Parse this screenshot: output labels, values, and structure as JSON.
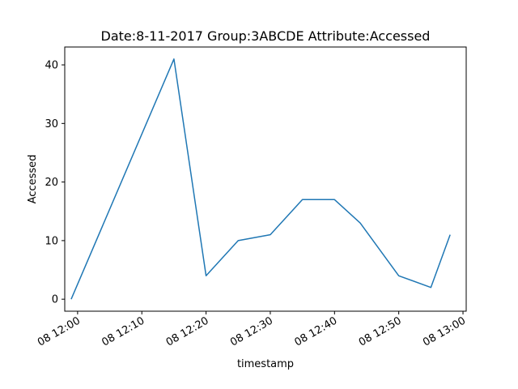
{
  "chart_data": {
    "type": "line",
    "title": "Date:8-11-2017  Group:3ABCDE Attribute:Accessed",
    "xlabel": "timestamp",
    "ylabel": "Accessed",
    "x_ticks": [
      "08 12:00",
      "08 12:10",
      "08 12:20",
      "08 12:30",
      "08 12:40",
      "08 12:50",
      "08 13:00"
    ],
    "y_ticks": [
      "0",
      "10",
      "20",
      "30",
      "40"
    ],
    "xlim": [
      "2017-08-08 11:58",
      "2017-08-08 13:00:30"
    ],
    "ylim": [
      -2.05,
      43.05
    ],
    "grid": false,
    "color": "#1f77b4",
    "series": [
      {
        "x": [
          "2017-08-08 11:59",
          "2017-08-08 12:15",
          "2017-08-08 12:20",
          "2017-08-08 12:25",
          "2017-08-08 12:30",
          "2017-08-08 12:35",
          "2017-08-08 12:40",
          "2017-08-08 12:44",
          "2017-08-08 12:50",
          "2017-08-08 12:55",
          "2017-08-08 12:58"
        ],
        "y": [
          0,
          41,
          4,
          10,
          11,
          17,
          17,
          13,
          4,
          2,
          11
        ]
      }
    ]
  }
}
